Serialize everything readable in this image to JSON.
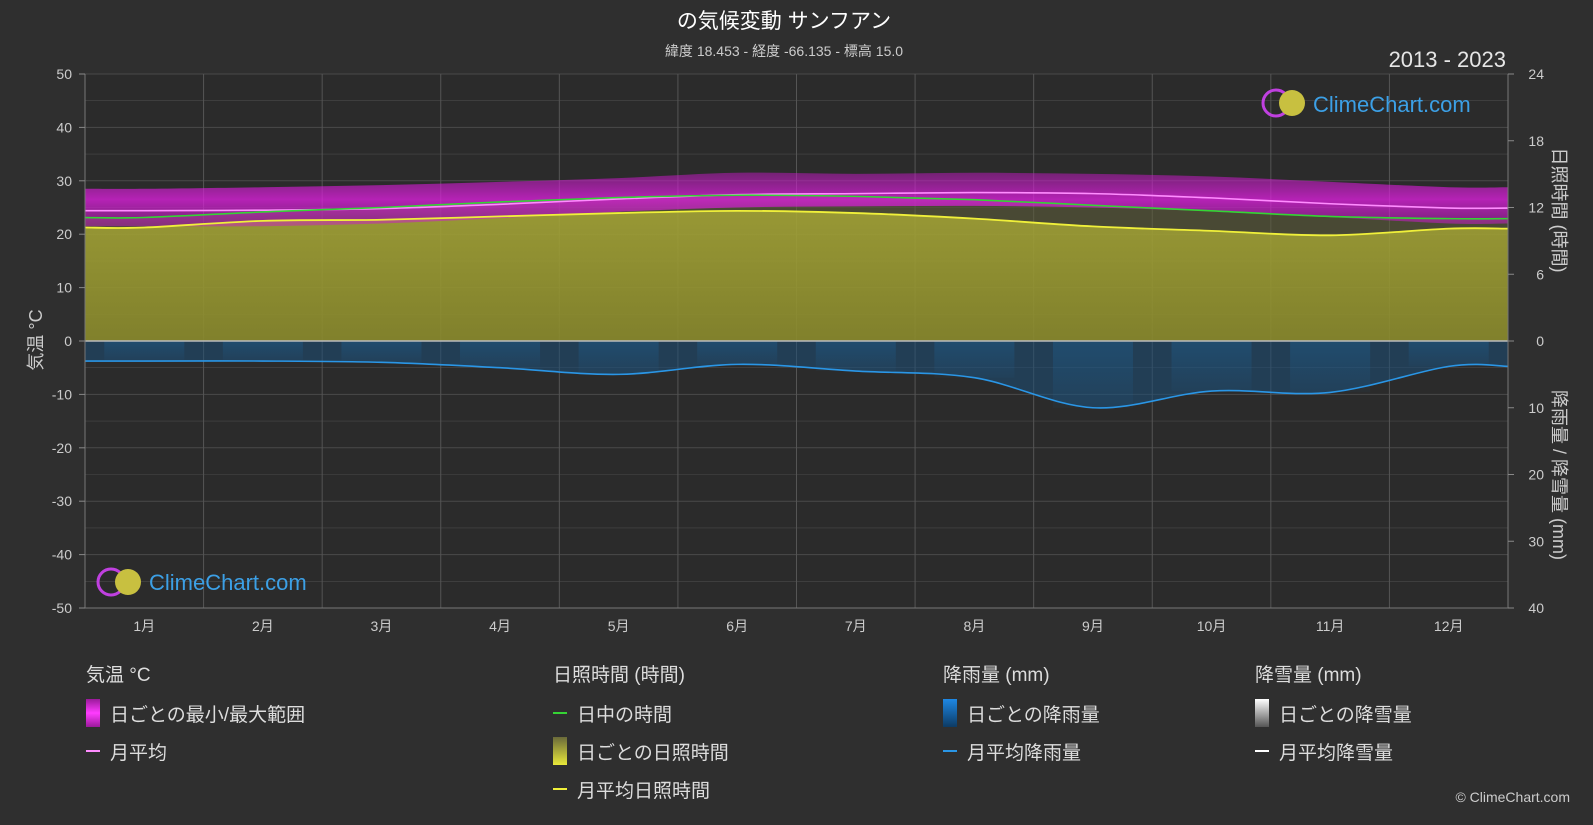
{
  "header": {
    "title": "の気候変動 サンフアン",
    "subtitle": "緯度 18.453 - 経度 -66.135 - 標高 15.0",
    "period": "2013 - 2023"
  },
  "logo_text": "ClimeChart.com",
  "copyright": "© ClimeChart.com",
  "colors": {
    "temp_range": "#d21ad2",
    "temp_avg": "#ff8cff",
    "daylight": "#35d435",
    "sunshine_fill": "#9a9a30",
    "sunshine_line": "#f0f03a",
    "rain": "#1e6eaa",
    "rain_line": "#2a96e6",
    "snow": "#ffffff"
  },
  "chart_data": {
    "type": "line",
    "months": [
      "1月",
      "2月",
      "3月",
      "4月",
      "5月",
      "6月",
      "7月",
      "8月",
      "9月",
      "10月",
      "11月",
      "12月"
    ],
    "left_axis": {
      "label": "気温 °C",
      "ticks": [
        "50",
        "40",
        "30",
        "20",
        "10",
        "0",
        "-10",
        "-20",
        "-30",
        "-40",
        "-50"
      ],
      "range": [
        -50,
        50
      ]
    },
    "right_axis_top": {
      "label": "日照時間 (時間)",
      "ticks": [
        "24",
        "18",
        "12",
        "6",
        "0"
      ],
      "range": [
        0,
        24
      ]
    },
    "right_axis_bottom": {
      "label": "降雨量 / 降雪量 (mm)",
      "ticks": [
        "0",
        "10",
        "20",
        "30",
        "40"
      ],
      "range": [
        0,
        40
      ]
    },
    "grid": true,
    "series": [
      {
        "name": "月平均",
        "unit": "°C",
        "values": [
          24.4,
          24.5,
          24.8,
          25.6,
          26.6,
          27.4,
          27.6,
          27.8,
          27.6,
          26.8,
          25.7,
          24.9
        ]
      },
      {
        "name": "日中の時間",
        "unit": "時間",
        "values": [
          11.1,
          11.6,
          12.0,
          12.5,
          12.9,
          13.1,
          13.0,
          12.7,
          12.2,
          11.7,
          11.2,
          11.0
        ]
      },
      {
        "name": "月平均日照時間",
        "unit": "時間",
        "values": [
          10.2,
          10.8,
          10.9,
          11.2,
          11.5,
          11.7,
          11.5,
          11.0,
          10.3,
          9.9,
          9.5,
          10.1
        ]
      },
      {
        "name": "月平均降雨量",
        "unit": "mm",
        "values": [
          3.0,
          3.0,
          3.2,
          4.0,
          5.0,
          3.5,
          4.5,
          5.5,
          10.0,
          7.5,
          7.7,
          3.8
        ]
      },
      {
        "name": "月平均降雪量",
        "unit": "mm",
        "values": [
          0,
          0,
          0,
          0,
          0,
          0,
          0,
          0,
          0,
          0,
          0,
          0
        ]
      }
    ],
    "temp_daily_range_monthly": {
      "min": [
        21.5,
        21.5,
        22.0,
        23.0,
        24.2,
        25.0,
        25.2,
        25.3,
        25.0,
        24.3,
        23.2,
        22.0
      ],
      "max": [
        28.5,
        28.8,
        29.2,
        29.8,
        30.5,
        31.5,
        31.3,
        31.5,
        31.3,
        30.8,
        29.8,
        28.8
      ]
    }
  },
  "legend": {
    "groups": [
      {
        "title": "気温 °C",
        "items": [
          {
            "label": "日ごとの最小/最大範囲",
            "kind": "box",
            "color": "#d21ad2"
          },
          {
            "label": "月平均",
            "kind": "line",
            "color": "#ff8cff"
          }
        ]
      },
      {
        "title": "日照時間 (時間)",
        "items": [
          {
            "label": "日中の時間",
            "kind": "line",
            "color": "#35d435"
          },
          {
            "label": "日ごとの日照時間",
            "kind": "box",
            "color": "#c8c83a"
          },
          {
            "label": "月平均日照時間",
            "kind": "line",
            "color": "#f0f03a"
          }
        ]
      },
      {
        "title": "降雨量 (mm)",
        "items": [
          {
            "label": "日ごとの降雨量",
            "kind": "box",
            "color": "#1e88e5"
          },
          {
            "label": "月平均降雨量",
            "kind": "line",
            "color": "#2a96e6"
          }
        ]
      },
      {
        "title": "降雪量 (mm)",
        "items": [
          {
            "label": "日ごとの降雪量",
            "kind": "box",
            "color": "#dddddd"
          },
          {
            "label": "月平均降雪量",
            "kind": "line",
            "color": "#ffffff"
          }
        ]
      }
    ]
  }
}
